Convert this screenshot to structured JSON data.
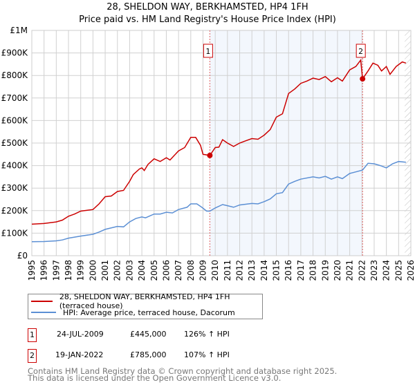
{
  "chart_data": {
    "type": "line",
    "title": "28, SHELDON WAY, BERKHAMSTED, HP4 1FH",
    "subtitle": "Price paid vs. HM Land Registry's House Price Index (HPI)",
    "xlim": [
      1995,
      2026
    ],
    "ylim": [
      0,
      1000000
    ],
    "x_ticks": [
      "1995",
      "1996",
      "1997",
      "1998",
      "1999",
      "2000",
      "2001",
      "2002",
      "2003",
      "2004",
      "2005",
      "2006",
      "2007",
      "2008",
      "2009",
      "2010",
      "2011",
      "2012",
      "2013",
      "2014",
      "2015",
      "2016",
      "2017",
      "2018",
      "2019",
      "2020",
      "2021",
      "2022",
      "2023",
      "2024",
      "2025",
      "2026"
    ],
    "y_ticks": [
      {
        "v": 0,
        "l": "£0"
      },
      {
        "v": 100000,
        "l": "£100K"
      },
      {
        "v": 200000,
        "l": "£200K"
      },
      {
        "v": 300000,
        "l": "£300K"
      },
      {
        "v": 400000,
        "l": "£400K"
      },
      {
        "v": 500000,
        "l": "£500K"
      },
      {
        "v": 600000,
        "l": "£600K"
      },
      {
        "v": 700000,
        "l": "£700K"
      },
      {
        "v": 800000,
        "l": "£800K"
      },
      {
        "v": 900000,
        "l": "£900K"
      },
      {
        "v": 1000000,
        "l": "£1M"
      }
    ],
    "grid": true,
    "shaded_range": [
      2009.56,
      2022.05
    ],
    "hatched_from": 2025.5,
    "series": [
      {
        "name": "28, SHELDON WAY, BERKHAMSTED, HP4 1FH (terraced house)",
        "color": "#cc0000",
        "x": [
          1995,
          1996,
          1997,
          1997.5,
          1998,
          1998.5,
          1999,
          2000,
          2000.5,
          2001,
          2001.5,
          2002,
          2002.5,
          2003,
          2003.3,
          2003.8,
          2004,
          2004.2,
          2004.5,
          2005,
          2005.5,
          2006,
          2006.3,
          2007,
          2007.5,
          2008,
          2008.4,
          2008.8,
          2009,
          2009.56,
          2010,
          2010.3,
          2010.6,
          2011,
          2011.5,
          2012,
          2012.5,
          2013,
          2013.5,
          2014,
          2014.5,
          2015,
          2015.5,
          2016,
          2016.5,
          2017,
          2017.5,
          2018,
          2018.5,
          2019,
          2019.5,
          2020,
          2020.4,
          2021,
          2021.5,
          2021.9,
          2022.05,
          2022.5,
          2022.9,
          2023.3,
          2023.6,
          2024,
          2024.3,
          2024.8,
          2025.3,
          2025.6
        ],
        "y": [
          140,
          143,
          150,
          158,
          175,
          185,
          198,
          205,
          230,
          262,
          265,
          285,
          290,
          330,
          360,
          385,
          390,
          378,
          405,
          430,
          418,
          435,
          425,
          465,
          480,
          525,
          525,
          490,
          450,
          445,
          480,
          482,
          515,
          500,
          485,
          500,
          510,
          520,
          517,
          535,
          560,
          615,
          630,
          720,
          740,
          765,
          775,
          788,
          782,
          795,
          772,
          790,
          775,
          825,
          840,
          868,
          785,
          820,
          855,
          845,
          820,
          840,
          805,
          840,
          860,
          855
        ]
      },
      {
        "name": "HPI: Average price, terraced house, Dacorum",
        "color": "#5b8fd4",
        "x": [
          1995,
          1996,
          1997,
          1997.5,
          1998,
          1999,
          2000,
          2000.5,
          2001,
          2002,
          2002.5,
          2003,
          2003.5,
          2004,
          2004.3,
          2005,
          2005.5,
          2006,
          2006.5,
          2007,
          2007.7,
          2008,
          2008.5,
          2008.9,
          2009.3,
          2009.56,
          2010,
          2010.6,
          2011,
          2011.5,
          2012,
          2013,
          2013.5,
          2014,
          2014.5,
          2015,
          2015.5,
          2016,
          2016.5,
          2017,
          2018,
          2018.5,
          2019,
          2019.5,
          2020,
          2020.4,
          2021,
          2021.5,
          2022.05,
          2022.5,
          2023,
          2023.5,
          2024,
          2024.5,
          2025,
          2025.6
        ],
        "y": [
          62,
          63,
          66,
          70,
          78,
          87,
          95,
          105,
          117,
          130,
          128,
          150,
          165,
          172,
          168,
          185,
          185,
          193,
          190,
          205,
          215,
          230,
          230,
          215,
          198,
          198,
          212,
          227,
          222,
          215,
          225,
          232,
          230,
          240,
          252,
          275,
          280,
          318,
          330,
          340,
          350,
          345,
          352,
          340,
          350,
          342,
          365,
          372,
          380,
          410,
          408,
          400,
          390,
          408,
          418,
          415
        ]
      }
    ],
    "y_units": "thousands GBP",
    "annotations": [
      {
        "label": "1",
        "x": 2009.56,
        "y": 445
      },
      {
        "label": "2",
        "x": 2022.05,
        "y": 785
      }
    ]
  },
  "transactions": [
    {
      "num": "1",
      "date": "24-JUL-2009",
      "price": "£445,000",
      "hpi": "126% ↑ HPI"
    },
    {
      "num": "2",
      "date": "19-JAN-2022",
      "price": "£785,000",
      "hpi": "107% ↑ HPI"
    }
  ],
  "footer": {
    "line1": "Contains HM Land Registry data © Crown copyright and database right 2025.",
    "line2": "This data is licensed under the Open Government Licence v3.0."
  }
}
